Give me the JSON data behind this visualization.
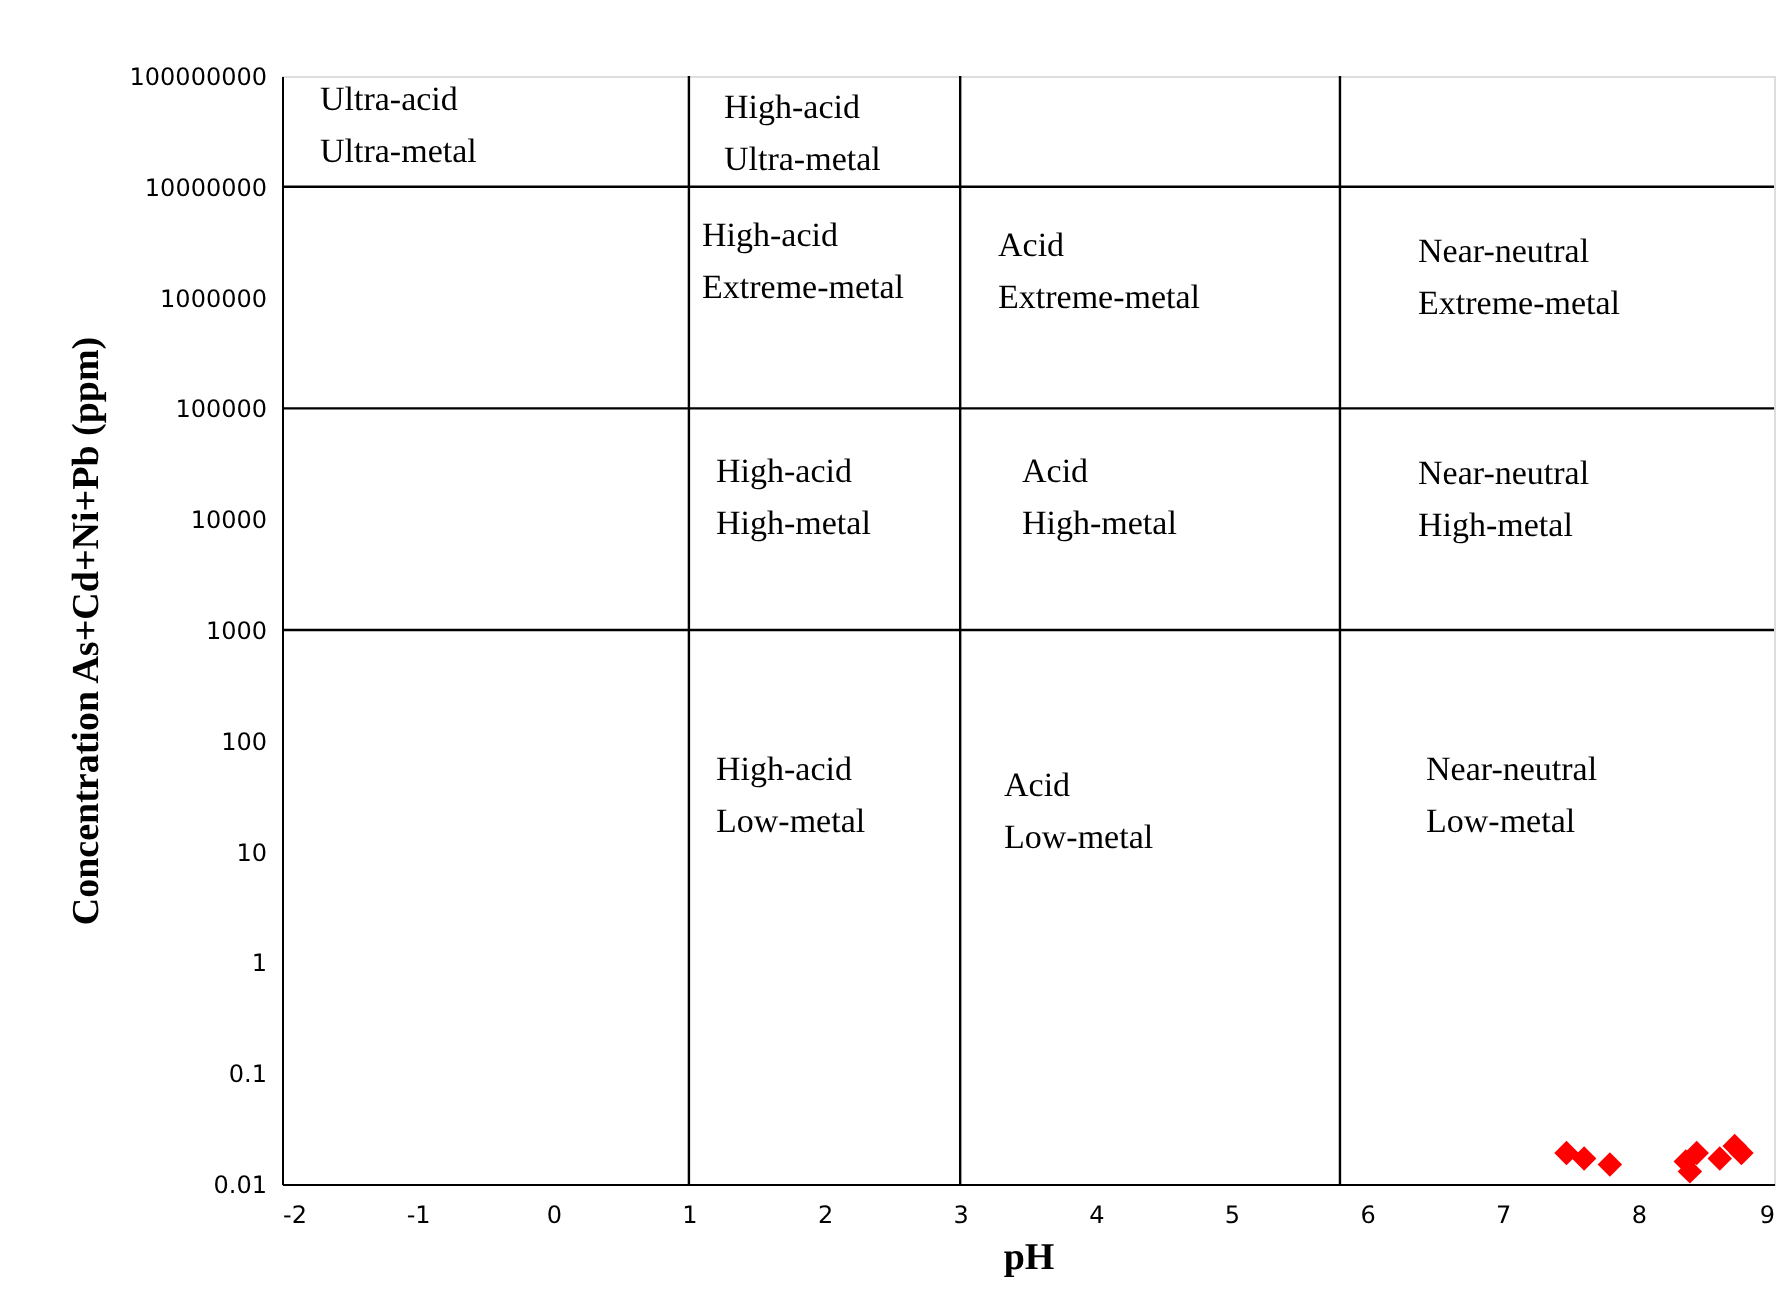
{
  "chart_data": {
    "type": "scatter",
    "xlabel": "pH",
    "ylabel": "Concentration As+Cd+Ni+Pb (ppm)",
    "series": [
      {
        "color": "#ff0000",
        "x": [
          7.47,
          7.6,
          7.79,
          8.35,
          8.38,
          8.43,
          8.6,
          8.71,
          8.76
        ],
        "values": [
          0.019,
          0.017,
          0.015,
          0.016,
          0.013,
          0.019,
          0.017,
          0.022,
          0.019
        ]
      }
    ],
    "marker": "diamond",
    "log": "y",
    "grid": false,
    "xlim": [
      -2,
      9
    ],
    "xticks": [
      -2,
      -1,
      0,
      1,
      2,
      3,
      4,
      5,
      6,
      7,
      8,
      9
    ],
    "ylim": [
      0.01,
      100000000
    ],
    "yticks": [
      0.01,
      0.1,
      1,
      10,
      100,
      1000,
      10000,
      100000,
      1000000,
      10000000,
      100000000
    ],
    "ref_lines": [
      {
        "axis": "x",
        "value": 1,
        "color": "#000000"
      },
      {
        "axis": "x",
        "value": 3,
        "color": "#000000"
      },
      {
        "axis": "x",
        "value": 5.8,
        "color": "#000000"
      },
      {
        "axis": "y",
        "value": 1000,
        "color": "#000000"
      },
      {
        "axis": "y",
        "value": 100000,
        "color": "#000000"
      },
      {
        "axis": "y",
        "value": 10000000,
        "color": "#000000"
      }
    ],
    "annotations": [
      "Ultra-acid\nUltra-metal",
      "High-acid\nUltra-metal",
      "High-acid\nExtreme-metal",
      "Acid\nExtreme-metal",
      "Near-neutral\nExtreme-metal",
      "High-acid\nHigh-metal",
      "Acid\nHigh-metal",
      "Near-neutral\nHigh-metal",
      "High-acid\nLow-metal",
      "Acid\nLow-metal",
      "Near-neutral\nLow-metal"
    ]
  }
}
